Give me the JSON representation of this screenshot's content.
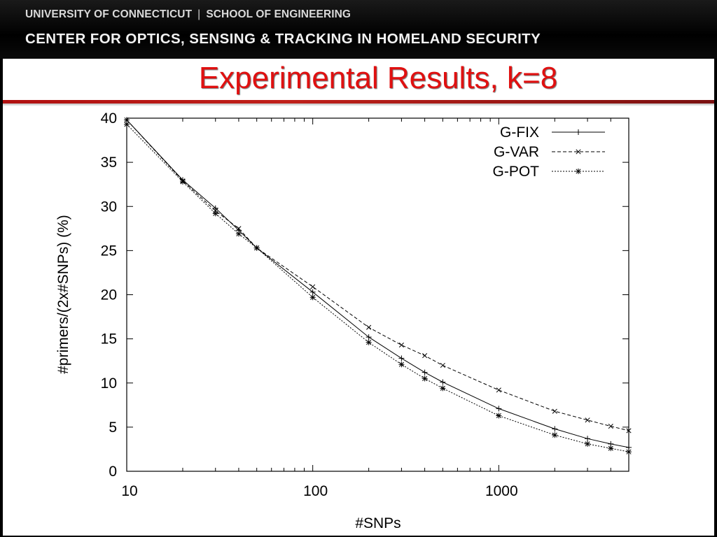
{
  "header": {
    "line1_left": "UNIVERSITY OF CONNECTICUT",
    "line1_sep": "|",
    "line1_right": "SCHOOL OF ENGINEERING",
    "line2": "CENTER FOR OPTICS, SENSING & TRACKING IN HOMELAND SECURITY"
  },
  "slide": {
    "title": "Experimental Results, k=8"
  },
  "colors": {
    "title": "#e01010",
    "divider": "#b01010",
    "header_bg": "#000000"
  },
  "chart_data": {
    "type": "line",
    "title": "",
    "xlabel": "#SNPs",
    "ylabel": "#primers/(2x#SNPs) (%)",
    "xscale": "log",
    "xlim": [
      10,
      5000
    ],
    "ylim": [
      0,
      40
    ],
    "xticks": [
      10,
      100,
      1000
    ],
    "xtick_labels": [
      "10",
      "100",
      "1000"
    ],
    "yticks": [
      0,
      5,
      10,
      15,
      20,
      25,
      30,
      35,
      40
    ],
    "ytick_labels": [
      "0",
      "5",
      "10",
      "15",
      "20",
      "25",
      "30",
      "35",
      "40"
    ],
    "grid": false,
    "legend_position": "top-right",
    "x": [
      10,
      20,
      30,
      40,
      50,
      100,
      200,
      300,
      400,
      500,
      1000,
      2000,
      3000,
      4000,
      5000
    ],
    "series": [
      {
        "name": "G-FIX",
        "line_style": "solid",
        "marker": "plus",
        "values": [
          39.8,
          33.0,
          29.8,
          27.3,
          25.3,
          20.3,
          15.2,
          12.8,
          11.2,
          10.1,
          7.1,
          4.8,
          3.7,
          3.1,
          2.7
        ]
      },
      {
        "name": "G-VAR",
        "line_style": "dashed",
        "marker": "cross",
        "values": [
          39.8,
          32.9,
          29.5,
          27.5,
          25.3,
          20.9,
          16.3,
          14.3,
          13.1,
          12.0,
          9.2,
          6.8,
          5.8,
          5.1,
          4.6
        ]
      },
      {
        "name": "G-POT",
        "line_style": "dotted",
        "marker": "star",
        "values": [
          39.3,
          32.8,
          29.2,
          26.9,
          25.3,
          19.7,
          14.6,
          12.1,
          10.5,
          9.4,
          6.3,
          4.1,
          3.1,
          2.6,
          2.2
        ]
      }
    ]
  }
}
